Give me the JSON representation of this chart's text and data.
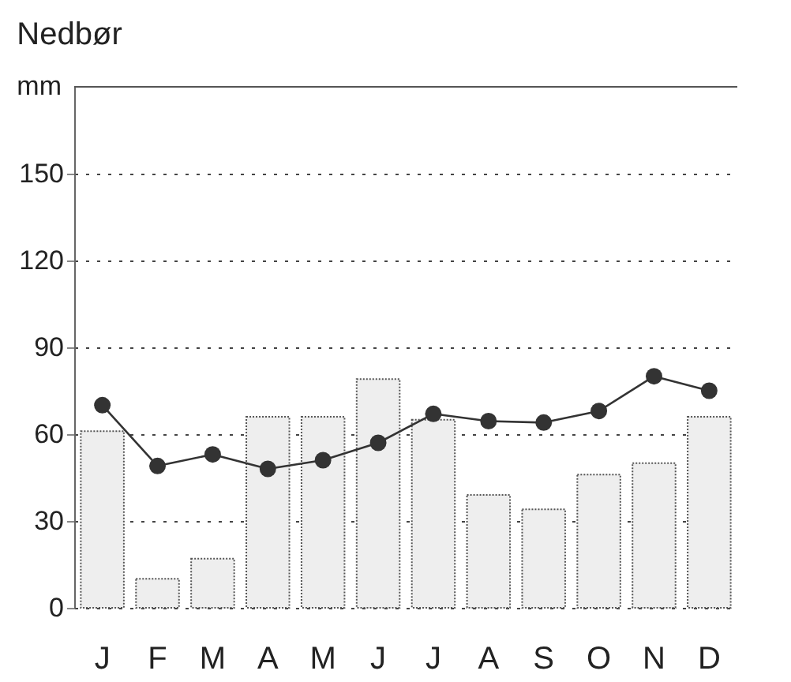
{
  "chart_data": {
    "type": "bar",
    "title": "Nedbør",
    "ylabel": "mm",
    "categories": [
      "J",
      "F",
      "M",
      "A",
      "M",
      "J",
      "J",
      "A",
      "S",
      "O",
      "N",
      "D"
    ],
    "series": [
      {
        "color": "#eeeeee",
        "values": [
          61,
          10,
          17,
          66,
          66,
          79,
          65,
          39,
          34,
          46,
          50,
          66
        ]
      },
      {
        "type": "line",
        "color": "#333333",
        "values": [
          70,
          49,
          53,
          48,
          51,
          57,
          67,
          64.5,
          64,
          68,
          80,
          75
        ]
      }
    ],
    "ylim": [
      0,
      180
    ],
    "yticks": [
      0,
      30,
      60,
      90,
      120,
      150
    ],
    "grid": "y",
    "marker": "circle",
    "line_style": "solid"
  }
}
